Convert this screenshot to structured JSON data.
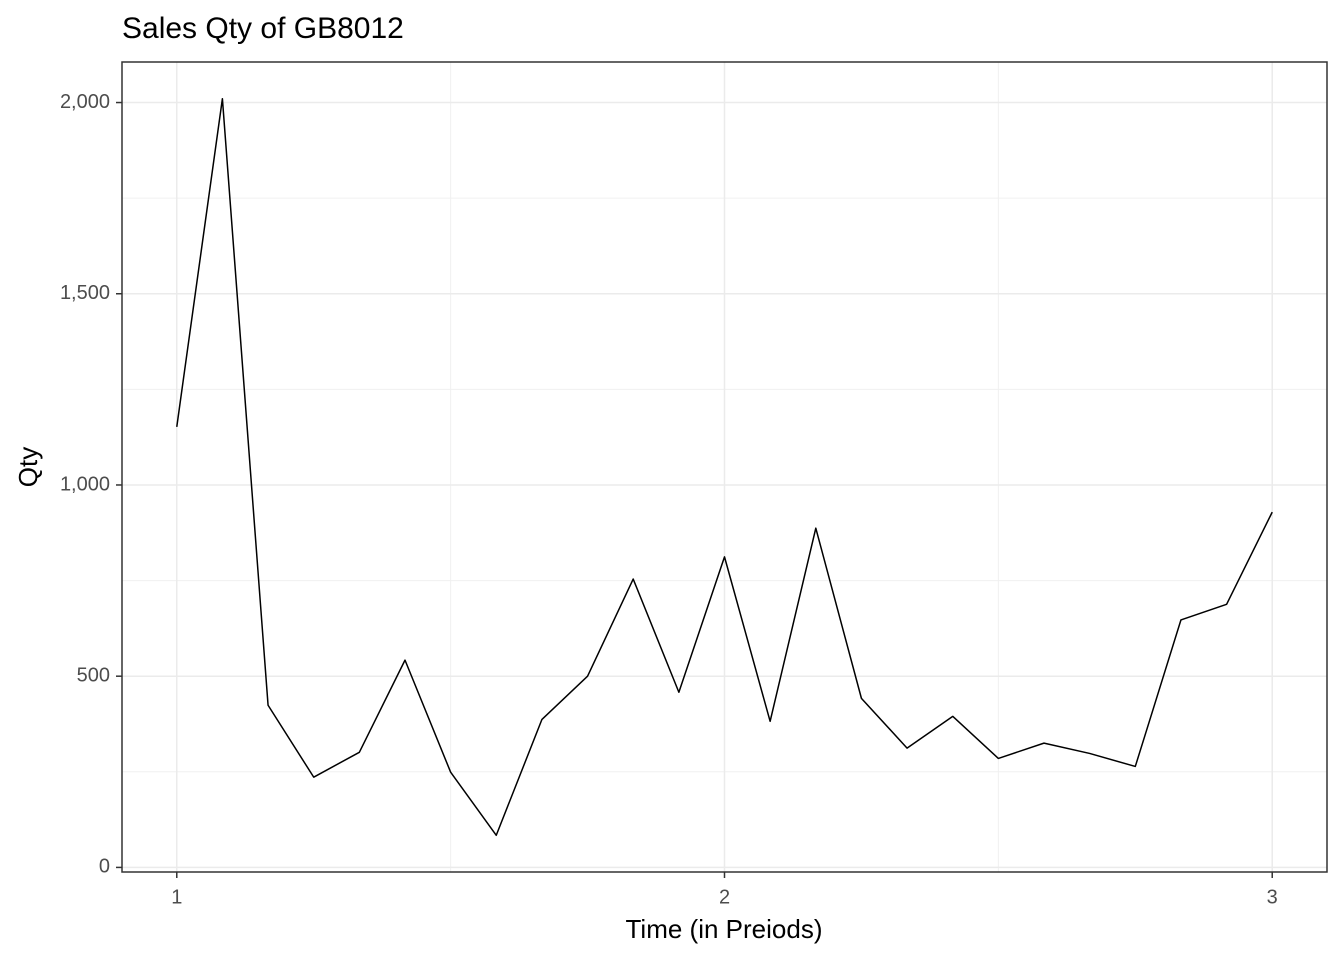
{
  "chart_data": {
    "type": "line",
    "title": "Sales Qty of GB8012",
    "x_label": "Time (in Preiods)",
    "y_label": "Qty",
    "x": [
      1,
      1.0833,
      1.1667,
      1.25,
      1.3333,
      1.4167,
      1.5,
      1.5833,
      1.6667,
      1.75,
      1.8333,
      1.9167,
      2,
      2.0833,
      2.1667,
      2.25,
      2.3333,
      2.4167,
      2.5,
      2.5833,
      2.6667,
      2.75,
      2.8333,
      2.9167,
      3
    ],
    "series": [
      {
        "color": "#000000",
        "values": [
          1152,
          2010,
          424,
          236,
          301,
          542,
          249,
          84,
          387,
          500,
          754,
          458,
          812,
          382,
          887,
          442,
          312,
          395,
          285,
          325,
          298,
          264,
          647,
          688,
          929
        ]
      }
    ],
    "xlim": [
      0.9,
      3.1
    ],
    "ylim": [
      -12,
      2106
    ],
    "xticks": [
      1,
      2,
      3
    ],
    "yticks": [
      0,
      500,
      {
        "value": 1000,
        "label": "1,000"
      },
      {
        "value": 1500,
        "label": "1,500"
      },
      {
        "value": 2000,
        "label": "2,000"
      }
    ],
    "xminor": [
      1.5,
      2.5
    ],
    "yminor": [
      250,
      750,
      1250,
      1750
    ],
    "grid": true
  }
}
